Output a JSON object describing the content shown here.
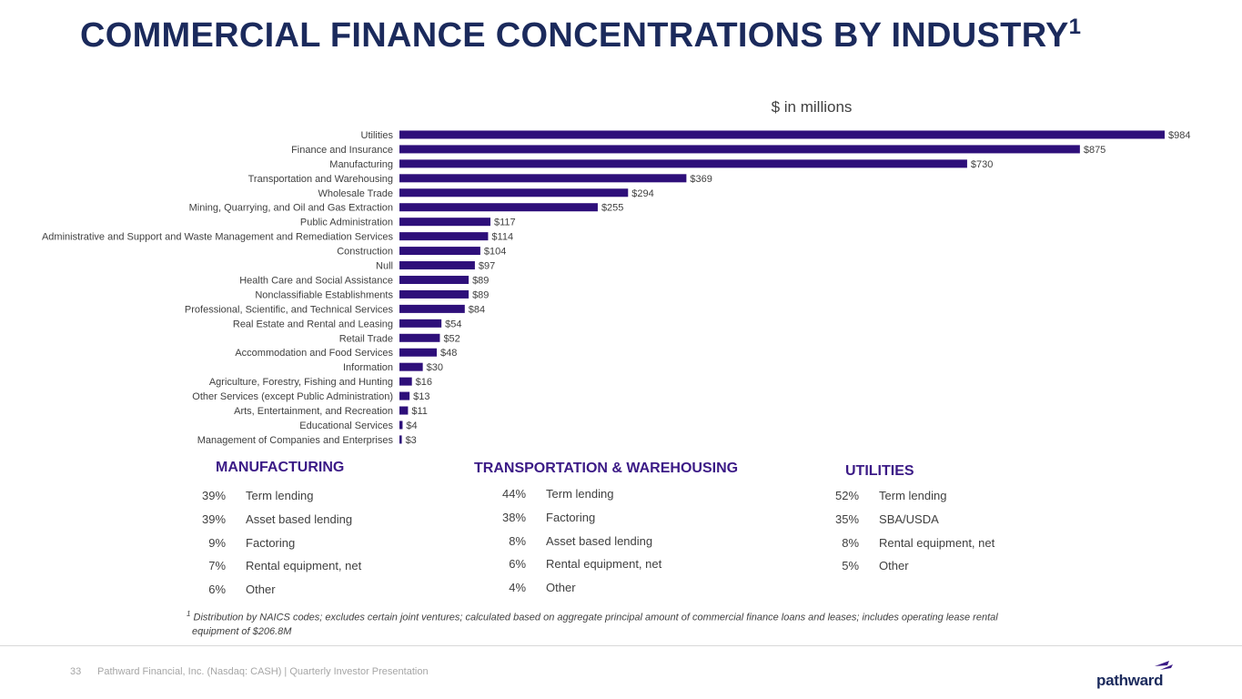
{
  "page": {
    "title": "COMMERCIAL FINANCE CONCENTRATIONS BY INDUSTRY",
    "title_superscript": "1",
    "units_label": "$ in millions"
  },
  "chart_data": {
    "type": "bar",
    "orientation": "horizontal",
    "title": "COMMERCIAL FINANCE CONCENTRATIONS BY INDUSTRY",
    "units": "$ in millions",
    "categories": [
      "Utilities",
      "Finance and Insurance",
      "Manufacturing",
      "Transportation and Warehousing",
      "Wholesale Trade",
      "Mining, Quarrying, and Oil and Gas Extraction",
      "Public Administration",
      "Administrative and Support and Waste Management and Remediation Services",
      "Construction",
      "Null",
      "Health Care and Social Assistance",
      "Nonclassifiable Establishments",
      "Professional, Scientific, and Technical Services",
      "Real Estate and Rental and Leasing",
      "Retail Trade",
      "Accommodation and Food Services",
      "Information",
      "Agriculture, Forestry, Fishing and Hunting",
      "Other Services (except Public Administration)",
      "Arts, Entertainment, and Recreation",
      "Educational Services",
      "Management of Companies and Enterprises"
    ],
    "values": [
      984,
      875,
      730,
      369,
      294,
      255,
      117,
      114,
      104,
      97,
      89,
      89,
      84,
      54,
      52,
      48,
      30,
      16,
      13,
      11,
      4,
      3
    ],
    "value_labels": [
      "$984",
      "$875",
      "$730",
      "$369",
      "$294",
      "$255",
      "$117",
      "$114",
      "$104",
      "$97",
      "$89",
      "$89",
      "$84",
      "$54",
      "$52",
      "$48",
      "$30",
      "$16",
      "$13",
      "$11",
      "$4",
      "$3"
    ],
    "xlim": [
      0,
      984
    ],
    "grid": false,
    "bar_color": "#2e0f7a"
  },
  "sections": {
    "manufacturing": {
      "title": "MANUFACTURING",
      "rows": [
        {
          "pct": "39%",
          "label": "Term lending"
        },
        {
          "pct": "39%",
          "label": "Asset based lending"
        },
        {
          "pct": "9%",
          "label": "Factoring"
        },
        {
          "pct": "7%",
          "label": "Rental equipment, net"
        },
        {
          "pct": "6%",
          "label": "Other"
        }
      ]
    },
    "transportation": {
      "title": "TRANSPORTATION & WAREHOUSING",
      "rows": [
        {
          "pct": "44%",
          "label": "Term lending"
        },
        {
          "pct": "38%",
          "label": "Factoring"
        },
        {
          "pct": "8%",
          "label": "Asset based lending"
        },
        {
          "pct": "6%",
          "label": "Rental equipment, net"
        },
        {
          "pct": "4%",
          "label": "Other"
        }
      ]
    },
    "utilities": {
      "title": "UTILITIES",
      "rows": [
        {
          "pct": "52%",
          "label": "Term lending"
        },
        {
          "pct": "35%",
          "label": "SBA/USDA"
        },
        {
          "pct": "8%",
          "label": "Rental equipment, net"
        },
        {
          "pct": "5%",
          "label": "Other"
        }
      ]
    }
  },
  "footnote": {
    "marker": "1",
    "text": "Distribution by NAICS codes; excludes certain joint ventures; calculated based on aggregate principal amount of commercial finance loans and leases; includes operating lease rental",
    "text_line2": "equipment of $206.8M"
  },
  "footer": {
    "page_number": "33",
    "text": "Pathward Financial, Inc. (Nasdaq: CASH) | Quarterly Investor Presentation",
    "logo_text": "pathward"
  },
  "colors": {
    "title": "#1b2a5c",
    "bar": "#2e0f7a",
    "section_title": "#3b1a86",
    "logo_accent": "#3b1a86"
  }
}
